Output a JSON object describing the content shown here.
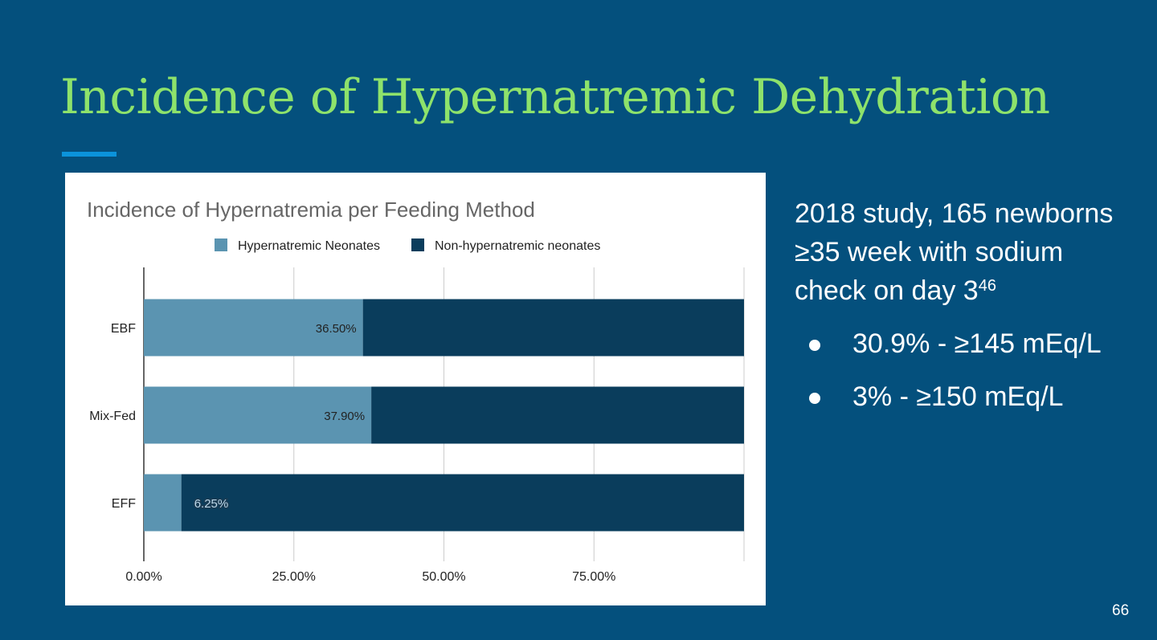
{
  "slide": {
    "title": "Incidence of Hypernatremic Dehydration",
    "page_number": "66",
    "side_text": {
      "paragraph": "2018 study, 165 newborns ≥35 week with sodium check on day 3",
      "superscript": "46",
      "bullets": [
        "30.9% - ≥145 mEq/L",
        "3% -  ≥150 mEq/L"
      ]
    }
  },
  "colors": {
    "background": "#04507d",
    "title": "#8ee26b",
    "accent_line": "#0b93db",
    "series_hyper": "#5b94b1",
    "series_non_hyper": "#0a3d5c"
  },
  "chart_data": {
    "type": "bar",
    "orientation": "horizontal",
    "stacked": true,
    "title": "Incidence of Hypernatremia per Feeding Method",
    "categories": [
      "EBF",
      "Mix-Fed",
      "EFF"
    ],
    "series": [
      {
        "name": "Hypernatremic Neonates",
        "values": [
          36.5,
          37.9,
          6.25
        ],
        "labels": [
          "36.50%",
          "37.90%",
          "6.25%"
        ]
      },
      {
        "name": "Non-hypernatremic neonates",
        "values": [
          63.5,
          62.1,
          93.75
        ]
      }
    ],
    "xlim": [
      0,
      100
    ],
    "x_ticks": [
      0,
      25,
      50,
      75
    ],
    "x_tick_labels": [
      "0.00%",
      "25.00%",
      "50.00%",
      "75.00%"
    ],
    "grid": true,
    "legend": "top"
  }
}
